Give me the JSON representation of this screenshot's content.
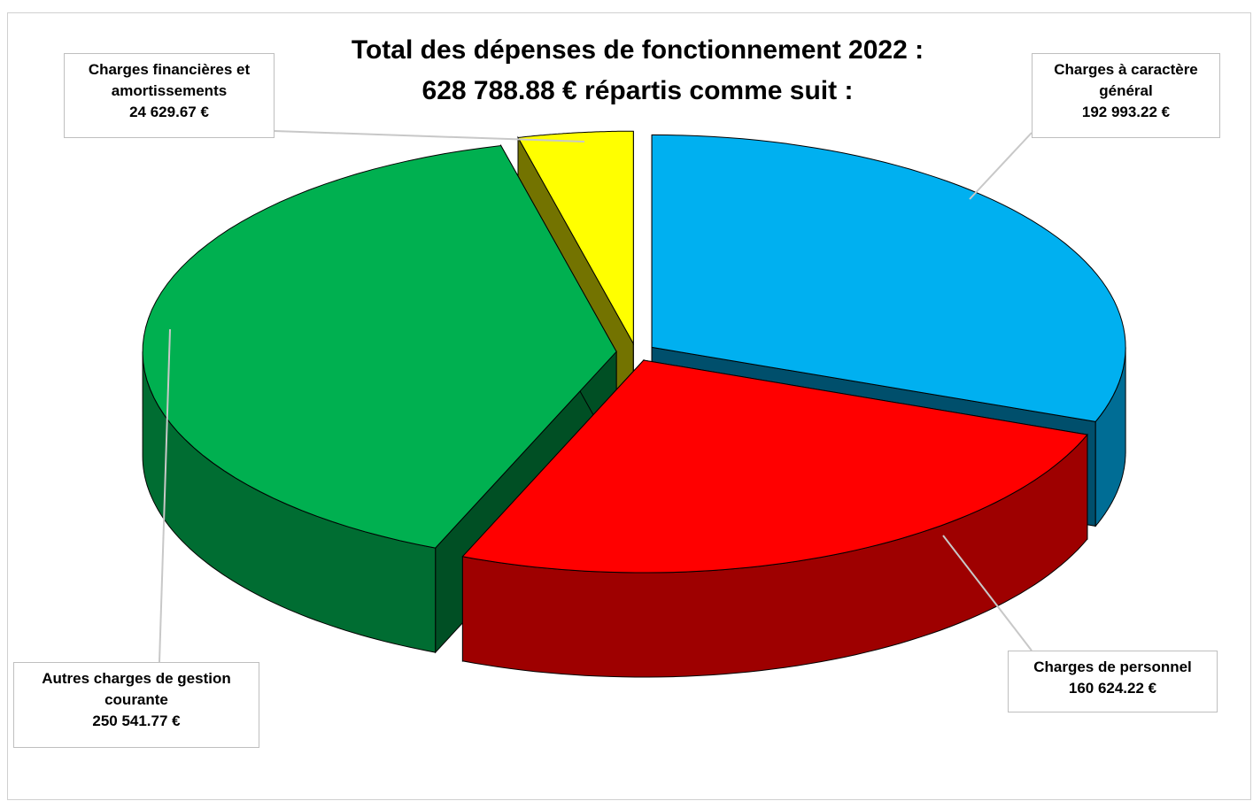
{
  "chart_data": {
    "type": "pie3d",
    "title": [
      "Total des dépenses de fonctionnement 2022 :",
      "628 788.88 € répartis comme suit :"
    ],
    "categories": [
      "Charges à caractère général",
      "Charges de personnel",
      "Autres charges de gestion courante",
      "Charges financières et amortissements"
    ],
    "values": [
      192993.22,
      160624.22,
      250541.77,
      24629.67
    ],
    "value_labels": [
      "192 993.22 €",
      "160 624.22 €",
      "250 541.77 €",
      "24 629.67 €"
    ],
    "colors": [
      "#00b0f0",
      "#ff0000",
      "#00b050",
      "#ffff00"
    ]
  }
}
